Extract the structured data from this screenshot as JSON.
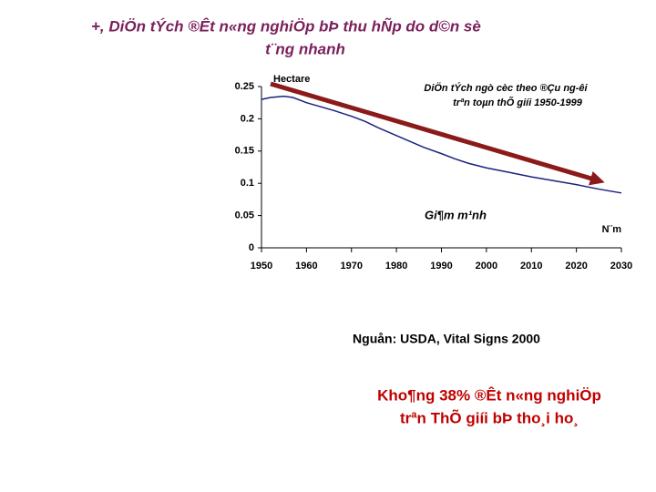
{
  "chart_data": {
    "type": "line",
    "title_lines": [
      "+, DiÖn tÝch ®Êt n«ng nghiÖp bÞ thu hÑp do d©n sè",
      "t¨ng nhanh"
    ],
    "y_label": "Hectare",
    "x_label": "N¨m",
    "annotation_lines": [
      "DiÖn tÝch ngò cèc theo ®Çu ng-êi",
      "trªn toµn thÕ giíi 1950-1999"
    ],
    "trend_label": "Gi¶m m¹nh",
    "source": "Nguån: USDA, Vital Signs 2000",
    "footnote_lines": [
      "Kho¶ng 38% ®Êt n«ng nghiÖp",
      "trªn ThÕ giíi bÞ tho¸i ho¸"
    ],
    "x": [
      1950,
      1952,
      1955,
      1957,
      1960,
      1963,
      1966,
      1970,
      1973,
      1976,
      1980,
      1983,
      1986,
      1990,
      1993,
      1996,
      2000,
      2005,
      2010,
      2015,
      2020,
      2025,
      2030
    ],
    "series": [
      {
        "color": "#1a237e",
        "values": [
          0.23,
          0.233,
          0.235,
          0.233,
          0.225,
          0.219,
          0.213,
          0.204,
          0.196,
          0.186,
          0.174,
          0.165,
          0.156,
          0.146,
          0.138,
          0.131,
          0.124,
          0.117,
          0.11,
          0.104,
          0.098,
          0.091,
          0.085
        ]
      }
    ],
    "xlim": [
      1950,
      2030
    ],
    "xticks": [
      1950,
      1960,
      1970,
      1980,
      1990,
      2000,
      2010,
      2020,
      2030
    ],
    "ylim": [
      0,
      0.25
    ],
    "yticks": [
      0,
      0.05,
      0.1,
      0.15,
      0.2,
      0.25
    ]
  }
}
